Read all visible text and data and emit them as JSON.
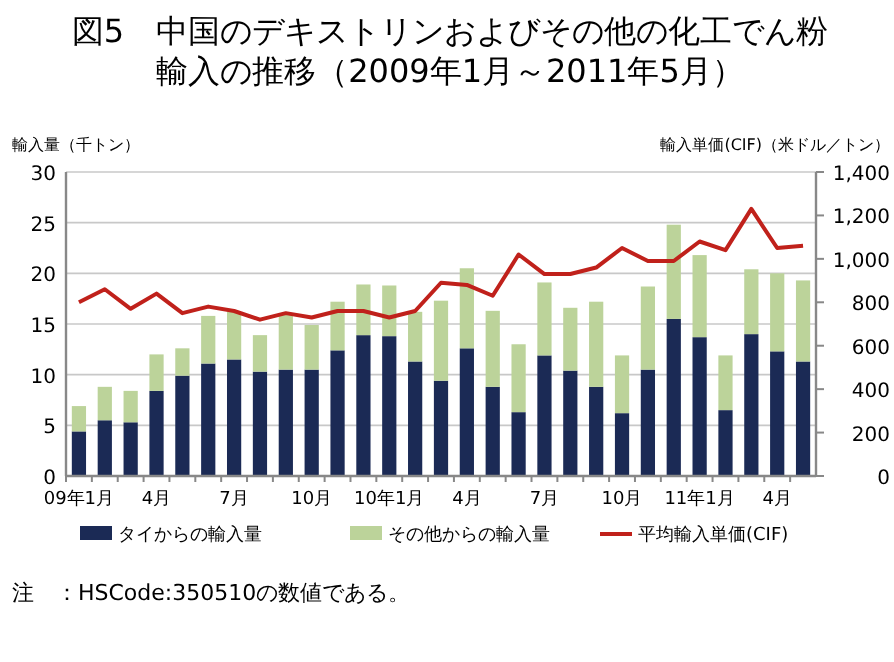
{
  "chart_data": {
    "type": "bar",
    "stacked": true,
    "title": "図5　中国のデキストリンおよびその他の化工でん粉輸入の推移（2009年1月～2011年5月）",
    "ylabel": "輸入量（千トン）",
    "y2label": "輸入単価(CIF)（米ドル／トン）",
    "categories": [
      "09年1月",
      null,
      null,
      "4月",
      null,
      null,
      "7月",
      null,
      null,
      "10月",
      null,
      null,
      "10年1月",
      null,
      null,
      "4月",
      null,
      null,
      "7月",
      null,
      null,
      "10月",
      null,
      null,
      "11年1月",
      null,
      null,
      "4月",
      null
    ],
    "series": [
      {
        "name": "タイからの輸入量",
        "color": "#1b2a55",
        "values": [
          4.4,
          5.5,
          5.3,
          8.4,
          9.9,
          11.1,
          11.5,
          10.3,
          10.5,
          10.5,
          12.4,
          13.9,
          13.8,
          11.3,
          9.4,
          12.6,
          8.8,
          6.3,
          11.9,
          10.4,
          8.8,
          6.2,
          10.5,
          15.5,
          13.7,
          6.5,
          14.0,
          12.3,
          11.3
        ]
      },
      {
        "name": "その他からの輸入量",
        "color": "#bcd39a",
        "values": [
          2.5,
          3.3,
          3.1,
          3.6,
          2.7,
          4.7,
          4.7,
          3.6,
          5.5,
          4.4,
          4.8,
          5.0,
          5.0,
          4.9,
          7.9,
          7.9,
          7.5,
          6.7,
          7.2,
          6.2,
          8.4,
          5.7,
          8.2,
          9.3,
          8.1,
          5.4,
          6.4,
          7.7,
          8.0
        ]
      },
      {
        "name": "平均輸入単価(CIF)",
        "type": "line",
        "axis": "y2",
        "color": "#c0211b",
        "values": [
          800,
          860,
          770,
          840,
          750,
          780,
          760,
          720,
          750,
          730,
          760,
          760,
          730,
          760,
          890,
          880,
          830,
          1020,
          930,
          930,
          960,
          1050,
          990,
          990,
          1080,
          1040,
          1230,
          1050,
          1060
        ]
      }
    ],
    "ylim": [
      0,
      30
    ],
    "yticks": [
      0,
      5,
      10,
      15,
      20,
      25,
      30
    ],
    "y2lim": [
      0,
      1400
    ],
    "y2ticks": [
      0,
      {
        "value": 200,
        "label": "200"
      },
      {
        "value": 400,
        "label": "400"
      },
      {
        "value": 600,
        "label": "600"
      },
      {
        "value": 800,
        "label": "800"
      },
      {
        "value": 1000,
        "label": "1,000"
      },
      {
        "value": 1200,
        "label": "1,200"
      },
      {
        "value": 1400,
        "label": "1,400"
      }
    ],
    "grid": "y",
    "legend": "bottom",
    "marker": "none",
    "line_style": "solid",
    "annotations": [
      "注　：HSCode:350510の数値である。"
    ]
  }
}
